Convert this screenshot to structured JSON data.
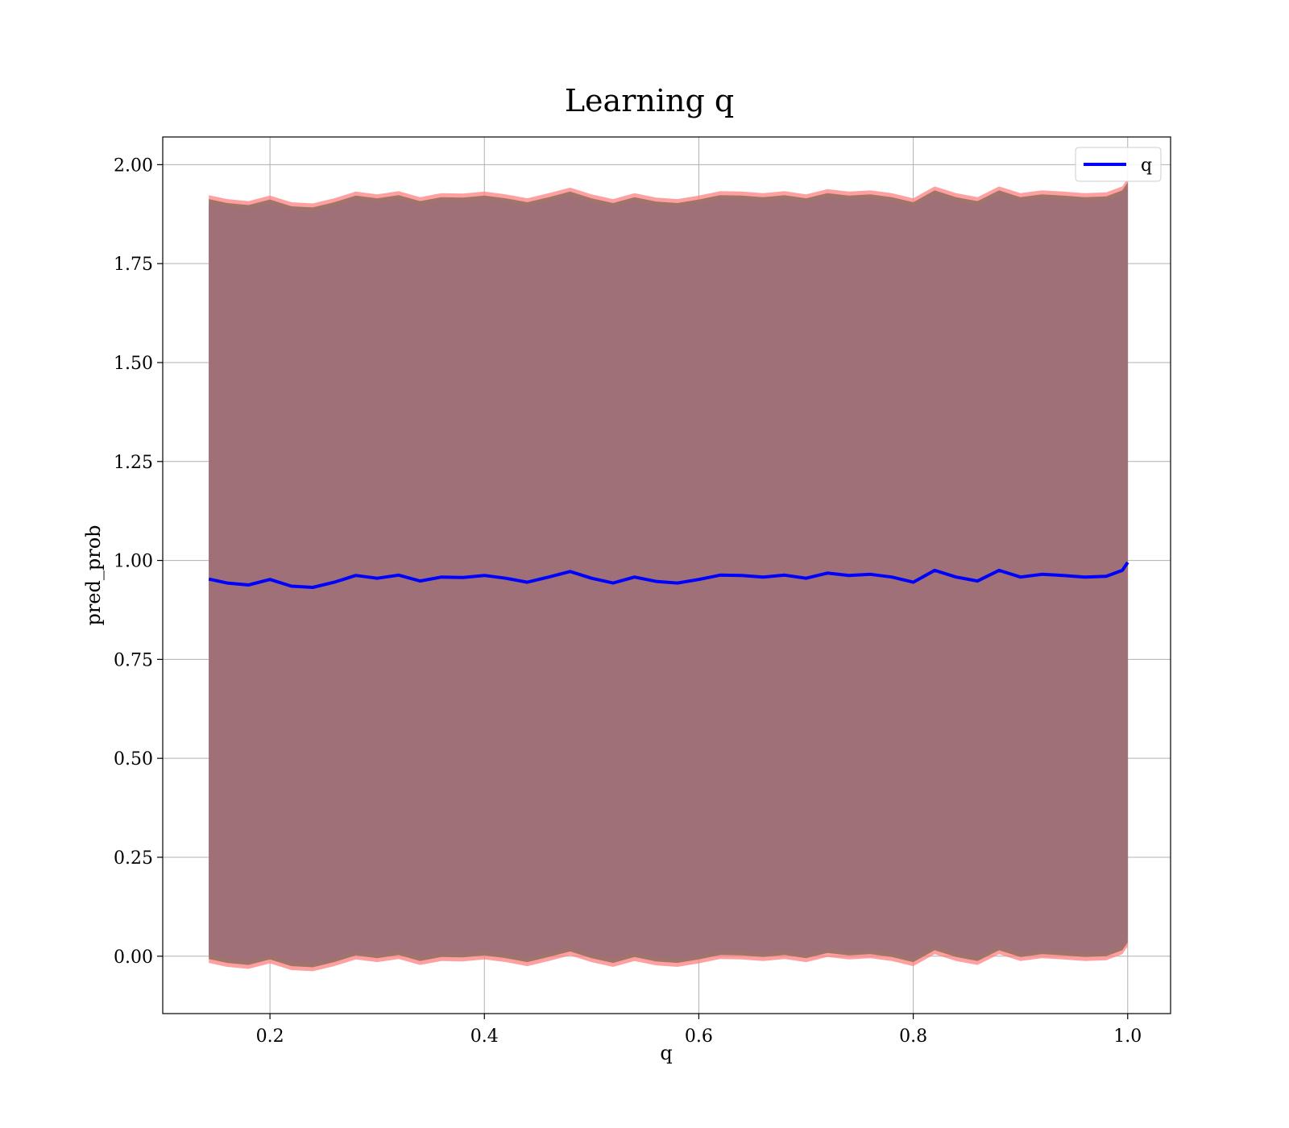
{
  "chart_data": {
    "type": "line",
    "title": "Learning q",
    "xlabel": "q",
    "ylabel": "pred_prob",
    "xlim": [
      0.1,
      1.04
    ],
    "ylim": [
      -0.145,
      2.07
    ],
    "xticks": [
      0.2,
      0.4,
      0.6,
      0.8,
      1.0
    ],
    "xtick_labels": [
      "0.2",
      "0.4",
      "0.6",
      "0.8",
      "1.0"
    ],
    "yticks": [
      0.0,
      0.25,
      0.5,
      0.75,
      1.0,
      1.25,
      1.5,
      1.75,
      2.0
    ],
    "ytick_labels": [
      "0.00",
      "0.25",
      "0.50",
      "0.75",
      "1.00",
      "1.25",
      "1.50",
      "1.75",
      "2.00"
    ],
    "grid": true,
    "legend": {
      "position": "top-right",
      "entries": [
        "q"
      ]
    },
    "colors": {
      "line": "#0000ff",
      "band_outer": "#ff8080",
      "band_middle": "#a0746b",
      "band_inner": "#8a4e61",
      "grid": "#b0b0b0"
    },
    "x": [
      0.143,
      0.16,
      0.18,
      0.2,
      0.22,
      0.24,
      0.26,
      0.28,
      0.3,
      0.32,
      0.34,
      0.36,
      0.38,
      0.4,
      0.42,
      0.44,
      0.46,
      0.48,
      0.5,
      0.52,
      0.54,
      0.56,
      0.58,
      0.6,
      0.62,
      0.64,
      0.66,
      0.68,
      0.7,
      0.72,
      0.74,
      0.76,
      0.78,
      0.8,
      0.82,
      0.84,
      0.86,
      0.88,
      0.9,
      0.92,
      0.94,
      0.96,
      0.98,
      0.995,
      1.0
    ],
    "series": [
      {
        "name": "q",
        "values": [
          0.953,
          0.943,
          0.938,
          0.952,
          0.935,
          0.932,
          0.945,
          0.962,
          0.955,
          0.963,
          0.948,
          0.958,
          0.957,
          0.962,
          0.955,
          0.945,
          0.958,
          0.972,
          0.955,
          0.943,
          0.958,
          0.947,
          0.943,
          0.952,
          0.963,
          0.962,
          0.958,
          0.963,
          0.955,
          0.968,
          0.962,
          0.965,
          0.958,
          0.945,
          0.975,
          0.958,
          0.948,
          0.975,
          0.958,
          0.965,
          0.962,
          0.958,
          0.96,
          0.975,
          0.995
        ]
      }
    ],
    "band_halfwidth": [
      0.95,
      0.97
    ]
  }
}
